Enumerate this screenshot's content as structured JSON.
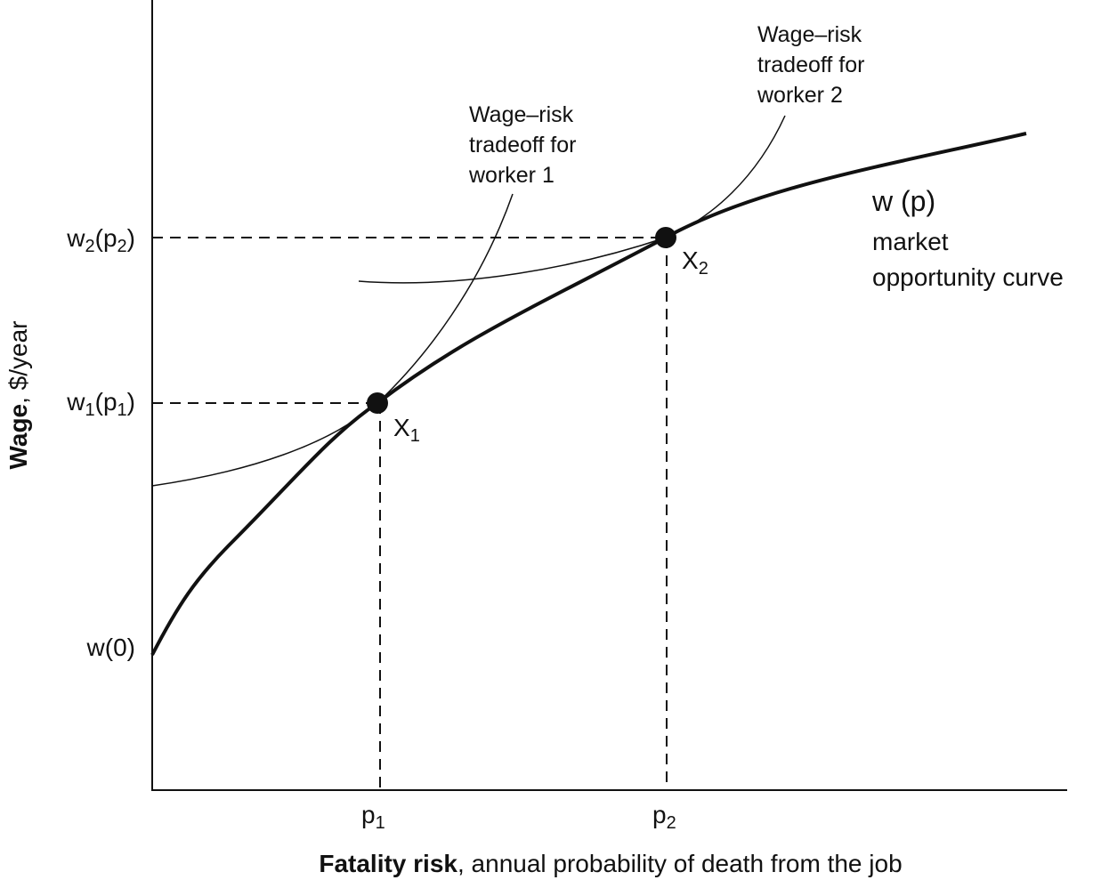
{
  "diagram": {
    "y_axis_label": [
      "Wage",
      ", $/year"
    ],
    "x_axis_label": [
      "Fatality risk",
      ", annual probability of death from the job"
    ],
    "y_ticks": [
      [
        "w",
        "2",
        "(p",
        "2",
        ")"
      ],
      [
        "w",
        "1",
        "(p",
        "1",
        ")"
      ],
      [
        "w(0)"
      ]
    ],
    "x_ticks": [
      [
        "p",
        "1"
      ],
      [
        "p",
        "2"
      ]
    ],
    "points": [
      [
        "X",
        "1"
      ],
      [
        "X",
        "2"
      ]
    ],
    "tradeoff_1": [
      "Wage–risk",
      "tradeoff for",
      "worker 1"
    ],
    "tradeoff_2": [
      "Wage–risk",
      "tradeoff for",
      "worker 2"
    ],
    "curve_label": [
      "w (p)",
      "market",
      "opportunity curve"
    ]
  }
}
